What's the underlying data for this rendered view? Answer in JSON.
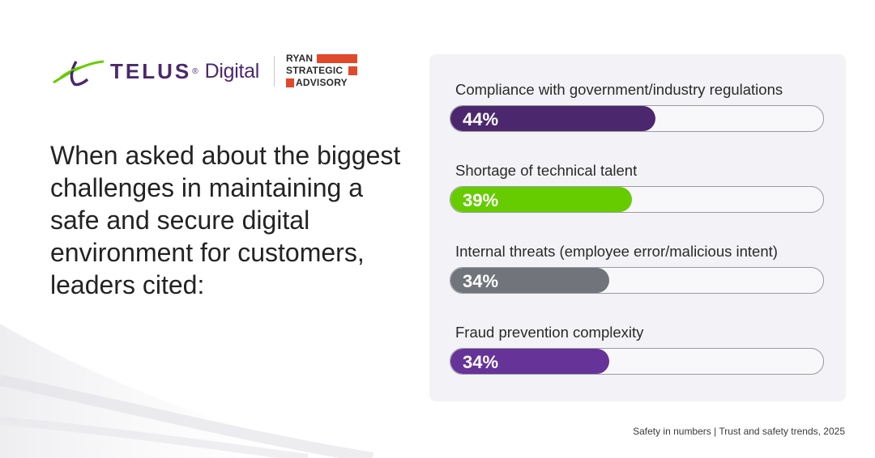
{
  "logos": {
    "telus_word": "TELUS",
    "telus_reg": "®",
    "telus_digital": "Digital",
    "ryan_lines": [
      "RYAN",
      "STRATEGIC",
      "ADVISORY"
    ],
    "brand_purple": "#4b286d",
    "brand_green": "#66cc00",
    "ryan_orange": "#e0492b"
  },
  "headline": "When asked about the biggest challenges in maintaining a safe and secure digital environment for customers, leaders cited:",
  "source": "Safety in numbers | Trust and safety trends, 2025",
  "chart_data": {
    "type": "bar",
    "orientation": "horizontal",
    "categories": [
      "Compliance with government/industry regulations",
      "Shortage of technical talent",
      "Internal threats (employee error/malicious intent)",
      "Fraud prevention complexity"
    ],
    "values": [
      44,
      39,
      34,
      34
    ],
    "value_labels": [
      "44%",
      "39%",
      "34%",
      "34%"
    ],
    "colors": [
      "#4b286d",
      "#66cc00",
      "#71757b",
      "#663399"
    ],
    "xlim": [
      0,
      80
    ],
    "grid": false,
    "title": "",
    "xlabel": "",
    "ylabel": ""
  }
}
